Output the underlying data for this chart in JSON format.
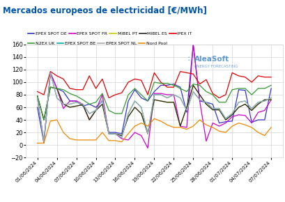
{
  "title": "Mercados europeos de electricidad [€/MWh]",
  "title_color": "#0055aa",
  "background_color": "#ffffff",
  "ylim": [
    -20,
    160
  ],
  "yticks": [
    -20,
    0,
    20,
    40,
    60,
    80,
    100,
    120,
    140,
    160
  ],
  "series_order": [
    "EPEX SPOT DE",
    "EPEX SPOT FR",
    "MIBEL PT",
    "MIBEL ES",
    "IPEX IT",
    "N2EX UK",
    "EPEX SPOT BE",
    "EPEX SPOT NL",
    "Nord Pool"
  ],
  "series_colors": {
    "EPEX SPOT DE": "#3333cc",
    "EPEX SPOT FR": "#cc00cc",
    "MIBEL PT": "#cccc00",
    "MIBEL ES": "#222222",
    "IPEX IT": "#dd0000",
    "N2EX UK": "#339933",
    "EPEX SPOT BE": "#00aaaa",
    "EPEX SPOT NL": "#aaaaaa",
    "Nord Pool": "#ee8800"
  },
  "xtick_labels": [
    "01/06/2024",
    "04/06/2024",
    "07/06/2024",
    "10/06/2024",
    "13/06/2024",
    "16/06/2024",
    "19/06/2024",
    "22/06/2024",
    "25/06/2024",
    "28/06/2024",
    "01/07/2024",
    "04/07/2024",
    "07/07/2024"
  ],
  "logo_text": "AleaSoft",
  "logo_sub": "ENERGY FORECASTING",
  "series_data": {
    "EPEX SPOT DE": [
      60,
      3,
      115,
      90,
      85,
      70,
      70,
      62,
      65,
      60,
      70,
      20,
      20,
      18,
      70,
      88,
      75,
      70,
      85,
      95,
      95,
      97,
      92,
      52,
      160,
      70,
      68,
      65,
      35,
      37,
      38,
      88,
      87,
      36,
      40,
      40,
      90
    ],
    "EPEX SPOT FR": [
      75,
      5,
      115,
      90,
      58,
      70,
      70,
      65,
      40,
      55,
      80,
      18,
      18,
      10,
      8,
      20,
      15,
      -5,
      82,
      82,
      80,
      80,
      30,
      28,
      160,
      70,
      6,
      35,
      30,
      35,
      45,
      48,
      47,
      35,
      52,
      55,
      72
    ],
    "MIBEL PT": [
      78,
      40,
      92,
      90,
      65,
      60,
      62,
      64,
      40,
      55,
      65,
      18,
      18,
      15,
      45,
      60,
      50,
      18,
      72,
      70,
      68,
      68,
      30,
      60,
      95,
      80,
      65,
      56,
      56,
      40,
      48,
      60,
      65,
      55,
      65,
      72,
      72
    ],
    "MIBEL ES": [
      78,
      40,
      92,
      90,
      65,
      60,
      62,
      64,
      40,
      55,
      65,
      18,
      18,
      15,
      45,
      60,
      50,
      18,
      72,
      70,
      68,
      68,
      30,
      60,
      95,
      80,
      65,
      56,
      56,
      40,
      48,
      60,
      65,
      55,
      65,
      72,
      72
    ],
    "IPEX IT": [
      85,
      80,
      117,
      110,
      105,
      90,
      88,
      88,
      110,
      90,
      105,
      75,
      80,
      83,
      100,
      105,
      103,
      80,
      115,
      100,
      92,
      92,
      117,
      115,
      113,
      97,
      104,
      82,
      75,
      80,
      115,
      110,
      108,
      100,
      110,
      108,
      108
    ],
    "N2EX UK": [
      78,
      40,
      92,
      90,
      88,
      82,
      78,
      72,
      65,
      68,
      82,
      55,
      50,
      50,
      80,
      90,
      80,
      70,
      100,
      98,
      98,
      95,
      90,
      85,
      97,
      95,
      85,
      80,
      68,
      68,
      88,
      90,
      90,
      80,
      90,
      90,
      95
    ],
    "EPEX SPOT BE": [
      75,
      5,
      115,
      75,
      65,
      65,
      68,
      65,
      50,
      55,
      72,
      18,
      18,
      12,
      50,
      70,
      60,
      18,
      80,
      80,
      75,
      80,
      75,
      55,
      85,
      72,
      68,
      58,
      58,
      42,
      50,
      68,
      70,
      58,
      68,
      70,
      75
    ],
    "EPEX SPOT NL": [
      75,
      5,
      115,
      75,
      65,
      65,
      68,
      65,
      50,
      55,
      72,
      18,
      18,
      12,
      50,
      70,
      60,
      18,
      80,
      80,
      75,
      80,
      75,
      55,
      85,
      72,
      68,
      58,
      58,
      42,
      50,
      68,
      70,
      58,
      68,
      70,
      75
    ],
    "Nord Pool": [
      3,
      3,
      38,
      40,
      20,
      10,
      8,
      8,
      8,
      8,
      20,
      7,
      7,
      5,
      18,
      30,
      35,
      30,
      42,
      38,
      32,
      28,
      28,
      25,
      30,
      40,
      32,
      28,
      22,
      20,
      30,
      35,
      32,
      28,
      20,
      15,
      28
    ]
  }
}
